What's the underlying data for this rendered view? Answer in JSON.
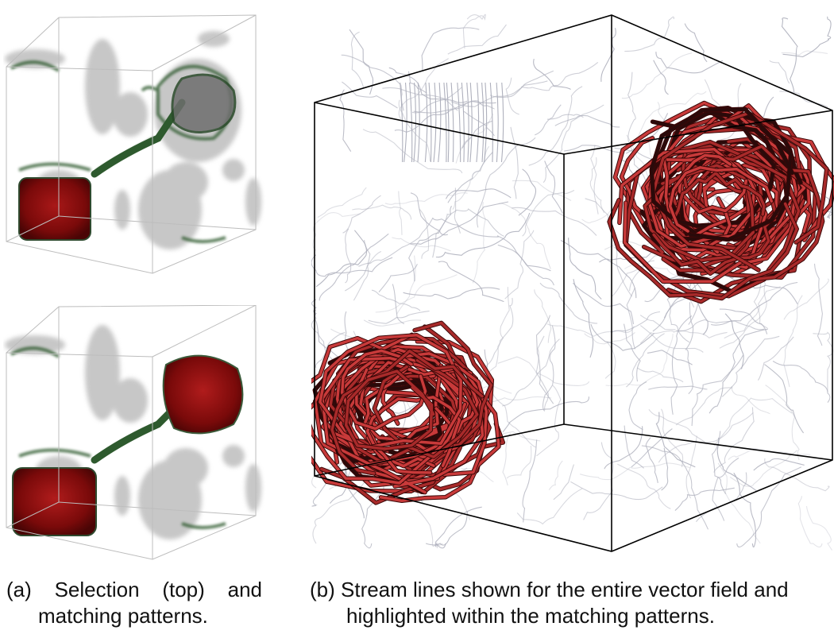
{
  "figure": {
    "panel_a": {
      "caption": {
        "tag": "(a)",
        "word1": "Selection",
        "word2": "(top)",
        "word3": "and",
        "line2": "matching patterns."
      }
    },
    "panel_b": {
      "caption": {
        "line1": "(b) Stream lines shown for the entire vector field and",
        "line2": "highlighted within the matching patterns."
      }
    }
  },
  "colors": {
    "box_edge": "#000000",
    "volume_gray": "#9a9a9a",
    "volume_green": "#2f5a2f",
    "pattern_red": "#8c0f0f",
    "highlight_red": "#c83a3a",
    "highlight_dark": "#2a0a0a",
    "stream_gray": "#6c6f86"
  }
}
